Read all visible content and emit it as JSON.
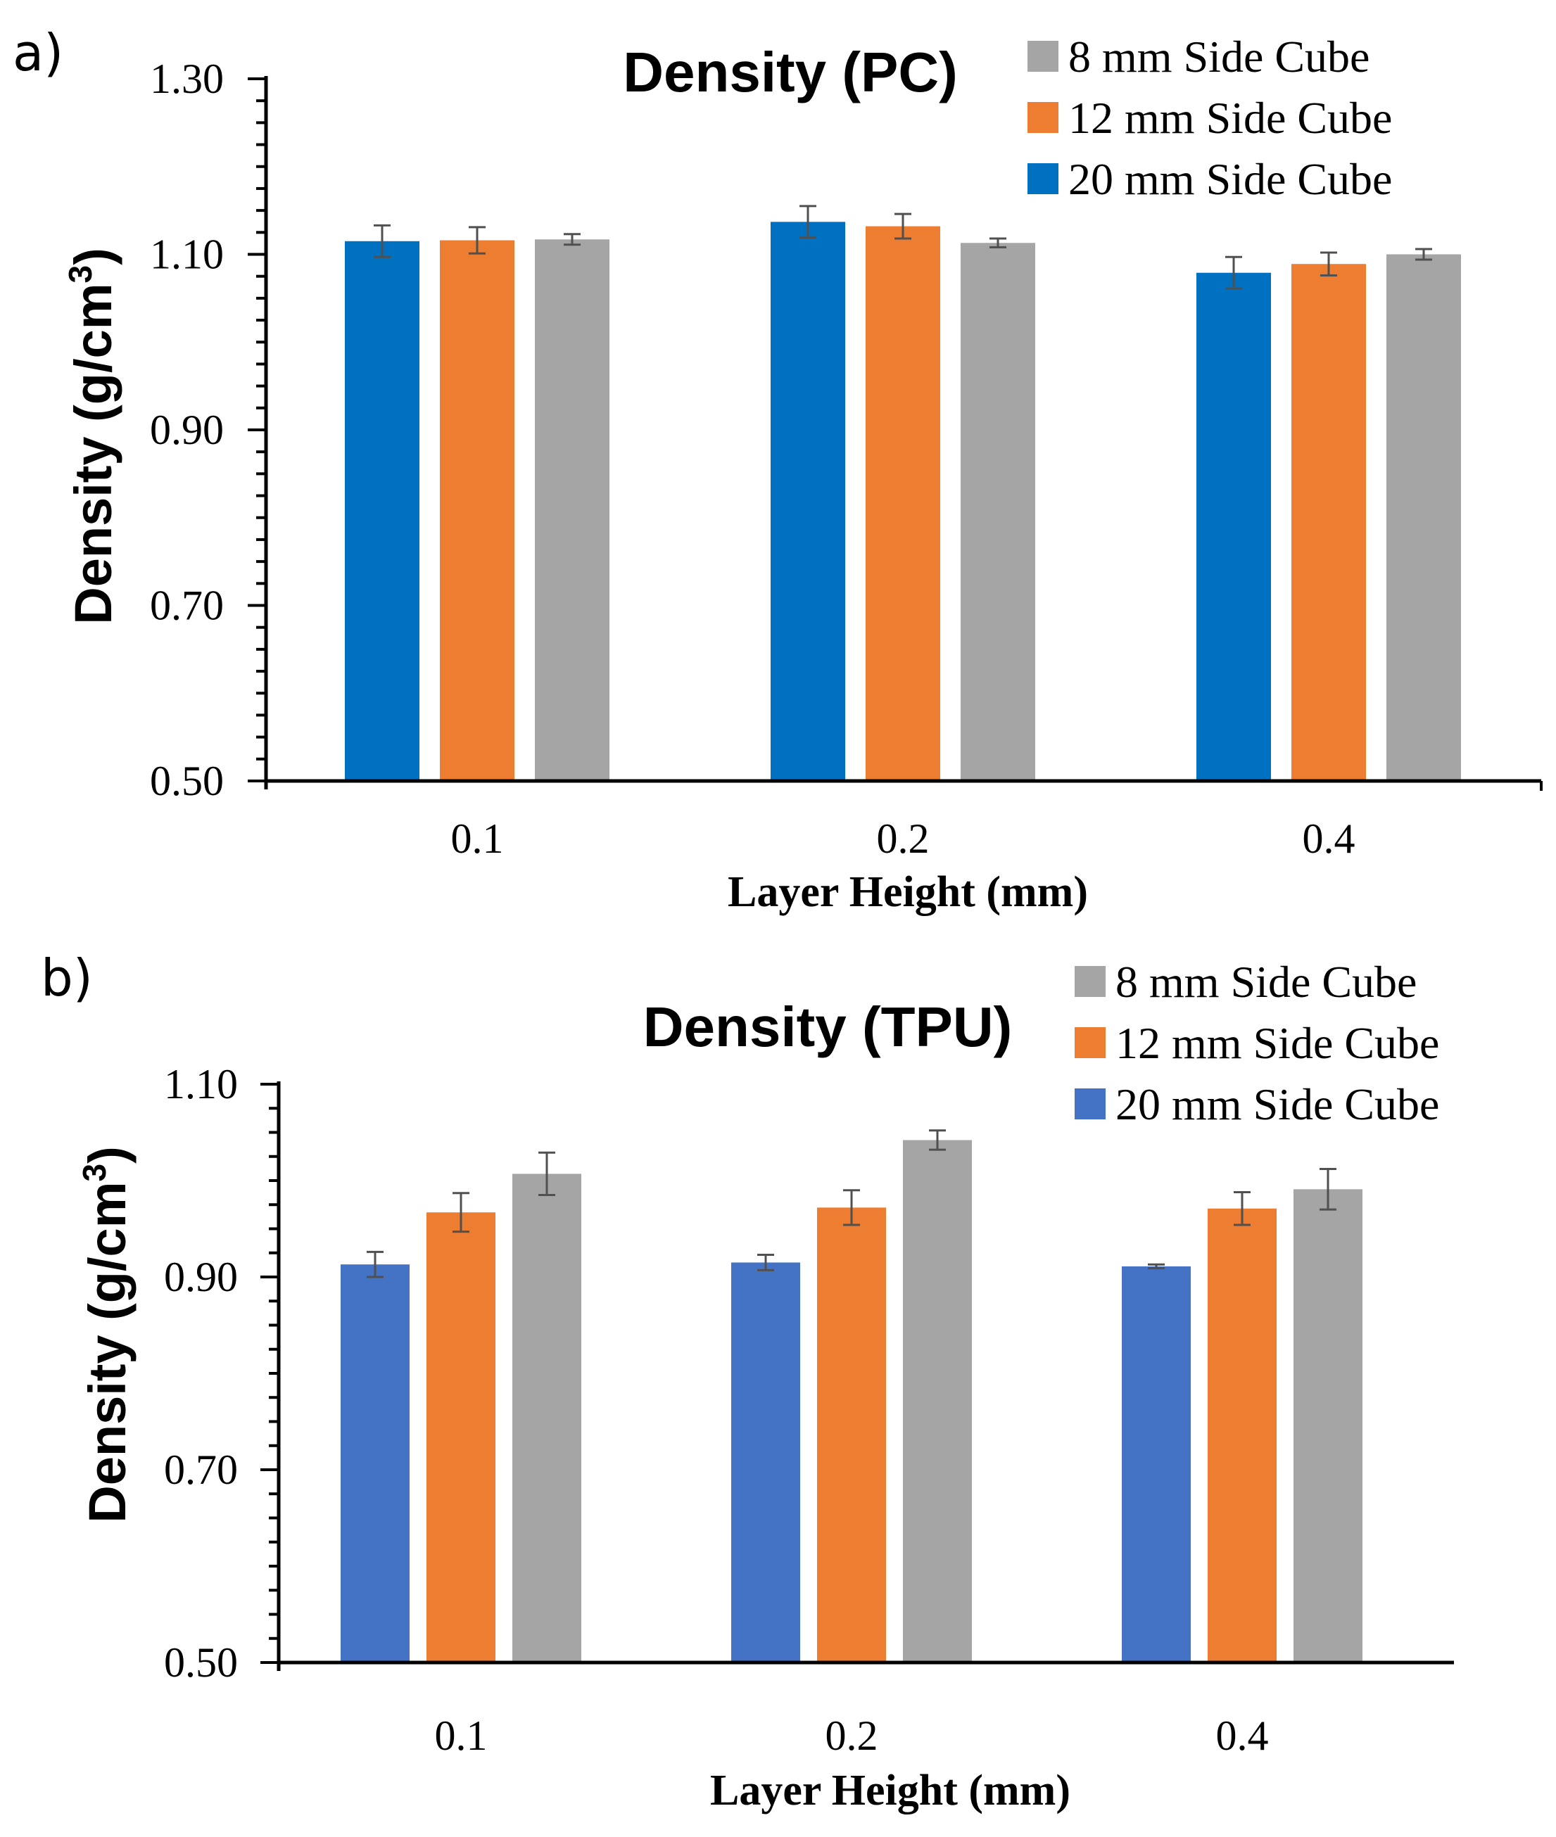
{
  "panel_a_label": "a)",
  "panel_b_label": "b)",
  "chart_data": [
    {
      "type": "bar",
      "title": "Density (PC)",
      "xlabel": "Layer Height (mm)",
      "ylabel": "Density (g/cm",
      "ylabel_sup": "3",
      "ylabel_close": ")",
      "ylim": [
        0.5,
        1.3
      ],
      "yticks": [
        "0.50",
        "0.70",
        "0.90",
        "1.10",
        "1.30"
      ],
      "categories": [
        "0.1",
        "0.2",
        "0.4"
      ],
      "legend_position": "top-right",
      "legend": [
        "8 mm Side Cube",
        "12 mm Side Cube",
        "20 mm Side Cube"
      ],
      "series": [
        {
          "name": "20 mm Side Cube",
          "color": "#0070C0",
          "values": [
            1.115,
            1.137,
            1.079
          ],
          "errors": [
            0.018,
            0.018,
            0.018
          ]
        },
        {
          "name": "12 mm Side Cube",
          "color": "#ED7D31",
          "values": [
            1.116,
            1.132,
            1.089
          ],
          "errors": [
            0.015,
            0.014,
            0.013
          ]
        },
        {
          "name": "8 mm Side Cube",
          "color": "#A5A5A5",
          "values": [
            1.117,
            1.113,
            1.1
          ],
          "errors": [
            0.006,
            0.005,
            0.006
          ]
        }
      ]
    },
    {
      "type": "bar",
      "title": "Density (TPU)",
      "xlabel": "Layer Height (mm)",
      "ylabel": "Density (g/cm",
      "ylabel_sup": "3",
      "ylabel_close": ")",
      "ylim": [
        0.5,
        1.1
      ],
      "yticks": [
        "0.50",
        "0.70",
        "0.90",
        "1.10"
      ],
      "categories": [
        "0.1",
        "0.2",
        "0.4"
      ],
      "legend_position": "top-right",
      "legend": [
        "8 mm Side Cube",
        "12 mm Side Cube",
        "20 mm Side Cube"
      ],
      "series": [
        {
          "name": "20 mm Side Cube",
          "color": "#4472C4",
          "values": [
            0.913,
            0.915,
            0.911
          ],
          "errors": [
            0.013,
            0.008,
            0.002
          ]
        },
        {
          "name": "12 mm Side Cube",
          "color": "#ED7D31",
          "values": [
            0.967,
            0.972,
            0.971
          ],
          "errors": [
            0.02,
            0.018,
            0.017
          ]
        },
        {
          "name": "8 mm Side Cube",
          "color": "#A5A5A5",
          "values": [
            1.007,
            1.042,
            0.991
          ],
          "errors": [
            0.022,
            0.01,
            0.021
          ]
        }
      ]
    }
  ]
}
